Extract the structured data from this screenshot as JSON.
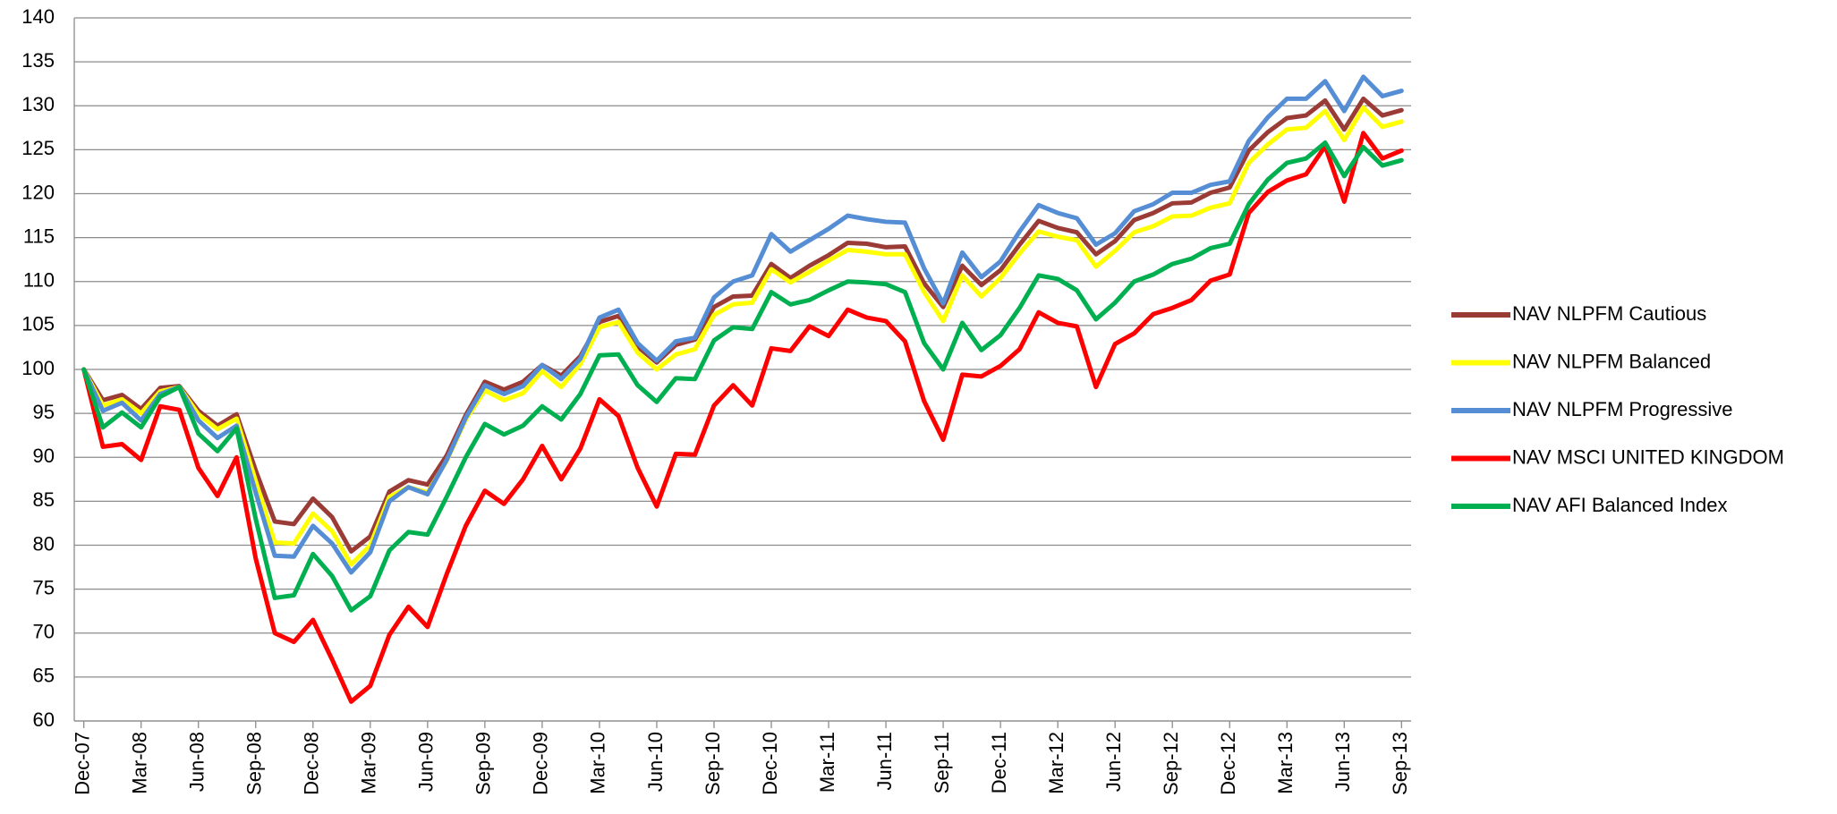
{
  "chart_data": {
    "type": "line",
    "categories": [
      "Dec-07",
      null,
      null,
      "Mar-08",
      null,
      null,
      "Jun-08",
      null,
      null,
      "Sep-08",
      null,
      null,
      "Dec-08",
      null,
      null,
      "Mar-09",
      null,
      null,
      "Jun-09",
      null,
      null,
      "Sep-09",
      null,
      null,
      "Dec-09",
      null,
      null,
      "Mar-10",
      null,
      null,
      "Jun-10",
      null,
      null,
      "Sep-10",
      null,
      null,
      "Dec-10",
      null,
      null,
      "Mar-11",
      null,
      null,
      "Jun-11",
      null,
      null,
      "Sep-11",
      null,
      null,
      "Dec-11",
      null,
      null,
      "Mar-12",
      null,
      null,
      "Jun-12",
      null,
      null,
      "Sep-12",
      null,
      null,
      "Dec-12",
      null,
      null,
      "Mar-13",
      null,
      null,
      "Jun-13",
      null,
      null,
      "Sep-13"
    ],
    "series": [
      {
        "name": "NAV NLPFM Cautious",
        "color": "#9b3b36",
        "values": [
          100,
          96.5,
          97.1,
          95.5,
          97.9,
          98.1,
          95.3,
          93.6,
          94.9,
          88.5,
          82.7,
          82.4,
          85.3,
          83.2,
          79.3,
          81,
          86.1,
          87.4,
          86.9,
          90.2,
          94.8,
          98.6,
          97.7,
          98.6,
          100.5,
          99.3,
          101.5,
          105.4,
          106.1,
          102.6,
          100.8,
          102.8,
          103.4,
          107.1,
          108.3,
          108.4,
          112,
          110.4,
          111.8,
          113,
          114.4,
          114.3,
          113.9,
          114,
          109.8,
          107.1,
          111.8,
          109.6,
          111.3,
          114.2,
          116.9,
          116.1,
          115.6,
          113.1,
          114.6,
          117,
          117.8,
          118.9,
          119,
          120.1,
          120.7,
          124.9,
          127,
          128.6,
          128.9,
          130.6,
          127.3,
          130.8,
          128.9,
          129.5
        ]
      },
      {
        "name": "NAV NLPFM Balanced",
        "color": "#ffff00",
        "values": [
          100,
          95.9,
          96.6,
          95,
          97.5,
          98,
          94.9,
          93.2,
          94.4,
          87.3,
          80.3,
          80.2,
          83.6,
          81.6,
          77.8,
          80,
          85.5,
          86.6,
          86,
          89.6,
          94.3,
          97.6,
          96.5,
          97.3,
          99.8,
          98,
          100.6,
          104.8,
          105.4,
          101.9,
          100,
          101.7,
          102.3,
          106.2,
          107.4,
          107.6,
          111.4,
          109.9,
          111.1,
          112.4,
          113.6,
          113.4,
          113.1,
          113.1,
          108.8,
          105.5,
          110.7,
          108.3,
          110.4,
          113.2,
          115.7,
          115.1,
          114.7,
          111.7,
          113.5,
          115.6,
          116.3,
          117.4,
          117.5,
          118.4,
          118.9,
          123.5,
          125.6,
          127.3,
          127.5,
          129.4,
          126.1,
          129.8,
          127.6,
          128.2
        ]
      },
      {
        "name": "NAV NLPFM Progressive",
        "color": "#558ed5",
        "values": [
          100,
          95.3,
          96.2,
          94.2,
          97.2,
          98,
          94.2,
          92.2,
          93.6,
          86,
          78.8,
          78.7,
          82.2,
          80.2,
          76.9,
          79.2,
          85,
          86.6,
          85.8,
          89.7,
          94.5,
          98.2,
          97.2,
          98.1,
          100.5,
          98.9,
          101.2,
          105.9,
          106.8,
          103,
          101,
          103.2,
          103.6,
          108.2,
          110,
          110.7,
          115.4,
          113.4,
          114.7,
          116,
          117.5,
          117.1,
          116.8,
          116.7,
          111.5,
          107.5,
          113.3,
          110.5,
          112.3,
          115.7,
          118.7,
          117.8,
          117.2,
          114.2,
          115.5,
          118,
          118.8,
          120.1,
          120.1,
          121,
          121.4,
          126,
          128.7,
          130.8,
          130.8,
          132.8,
          129.4,
          133.3,
          131.1,
          131.7
        ]
      },
      {
        "name": "NAV MSCI UNITED KINGDOM",
        "color": "#ff0000",
        "values": [
          100,
          91.2,
          91.5,
          89.7,
          95.8,
          95.4,
          88.8,
          85.6,
          90,
          78.5,
          70,
          69,
          71.5,
          67,
          62.2,
          64,
          69.8,
          73,
          70.7,
          76.7,
          82.2,
          86.2,
          84.7,
          87.5,
          91.3,
          87.5,
          91,
          96.6,
          94.7,
          88.8,
          84.4,
          90.4,
          90.3,
          95.9,
          98.2,
          95.9,
          102.4,
          102.1,
          104.9,
          103.8,
          106.8,
          105.9,
          105.5,
          103.2,
          96.4,
          92,
          99.4,
          99.2,
          100.4,
          102.3,
          106.5,
          105.3,
          104.9,
          98,
          102.9,
          104.1,
          106.3,
          107,
          107.9,
          110.1,
          110.8,
          117.8,
          120.2,
          121.5,
          122.2,
          125.4,
          119.1,
          126.9,
          124,
          124.9
        ]
      },
      {
        "name": "NAV AFI Balanced Index",
        "color": "#00b050",
        "values": [
          100,
          93.4,
          95.1,
          93.4,
          96.9,
          98,
          92.7,
          90.7,
          93.3,
          83,
          74,
          74.3,
          79,
          76.5,
          72.6,
          74.2,
          79.4,
          81.5,
          81.2,
          85.5,
          90,
          93.8,
          92.6,
          93.6,
          95.8,
          94.3,
          97.2,
          101.6,
          101.7,
          98.2,
          96.3,
          99,
          98.9,
          103.3,
          104.8,
          104.6,
          108.8,
          107.4,
          107.9,
          109,
          110,
          109.9,
          109.7,
          108.8,
          103,
          100,
          105.3,
          102.2,
          103.9,
          107,
          110.7,
          110.3,
          109,
          105.7,
          107.6,
          110,
          110.8,
          112,
          112.6,
          113.8,
          114.3,
          118.8,
          121.6,
          123.5,
          124,
          125.8,
          122,
          125.3,
          123.2,
          123.8
        ]
      }
    ],
    "ylim": [
      60,
      140
    ],
    "yticks": [
      60,
      65,
      70,
      75,
      80,
      85,
      90,
      95,
      100,
      105,
      110,
      115,
      120,
      125,
      130,
      135,
      140
    ],
    "grid": true,
    "legend": "right"
  }
}
